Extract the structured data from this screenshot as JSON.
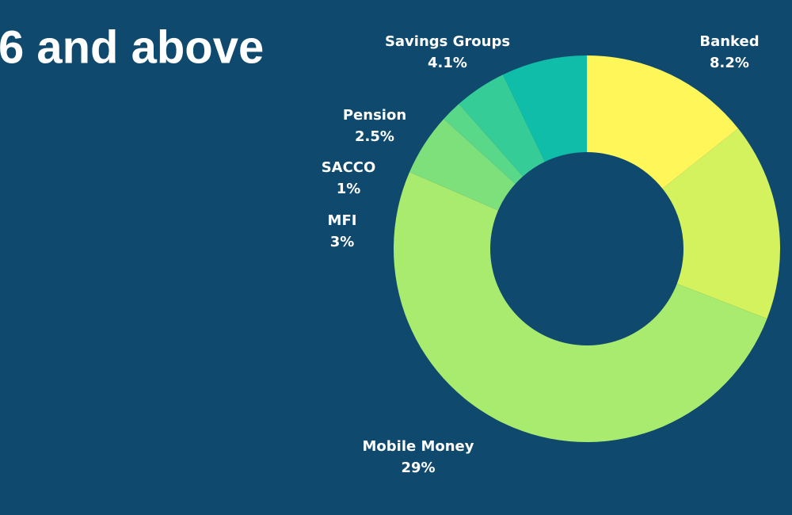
{
  "chart_data": {
    "type": "donut",
    "title": "6 and above",
    "categories": [
      "Banked",
      null,
      "Mobile Money",
      "MFI",
      "SACCO",
      "Pension",
      "Savings Groups"
    ],
    "values": [
      8.2,
      9.5,
      29,
      3,
      1,
      2.5,
      4.1
    ],
    "value_labels": [
      "8.2%",
      null,
      "29%",
      "3%",
      "1%",
      "2.5%",
      "4.1%"
    ],
    "colors": [
      "#fff75a",
      "#d4f25e",
      "#a8eb6e",
      "#7ee07a",
      "#5ad88a",
      "#36cc98",
      "#10bda8"
    ]
  }
}
